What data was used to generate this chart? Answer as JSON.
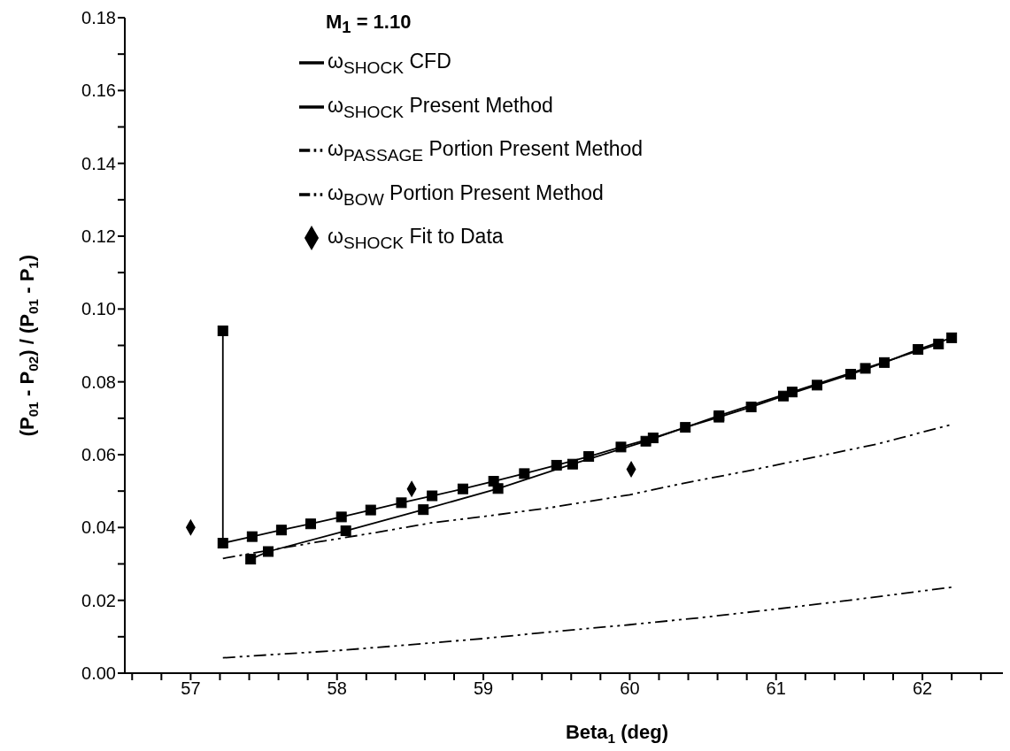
{
  "chart_data": {
    "type": "line",
    "title": "M$_{1}$ = 1.10",
    "xlabel": "Beta$_{1}$ (deg)",
    "ylabel": "(P$_{01}$ - P$_{02}$) / (P$_{01}$ - P$_{1}$)",
    "xlim": [
      56.55,
      62.55
    ],
    "xticks": [
      {
        "value": 56.6,
        "label": null
      },
      {
        "value": 56.8,
        "label": null
      },
      57,
      {
        "value": 57.2,
        "label": null
      },
      {
        "value": 57.4,
        "label": null
      },
      {
        "value": 57.6,
        "label": null
      },
      {
        "value": 57.8,
        "label": null
      },
      58,
      {
        "value": 58.2,
        "label": null
      },
      {
        "value": 58.4,
        "label": null
      },
      {
        "value": 58.6,
        "label": null
      },
      {
        "value": 58.8,
        "label": null
      },
      59,
      {
        "value": 59.2,
        "label": null
      },
      {
        "value": 59.4,
        "label": null
      },
      {
        "value": 59.6,
        "label": null
      },
      {
        "value": 59.8,
        "label": null
      },
      60,
      {
        "value": 60.2,
        "label": null
      },
      {
        "value": 60.4,
        "label": null
      },
      {
        "value": 60.6,
        "label": null
      },
      {
        "value": 60.8,
        "label": null
      },
      61,
      {
        "value": 61.2,
        "label": null
      },
      {
        "value": 61.4,
        "label": null
      },
      {
        "value": 61.6,
        "label": null
      },
      {
        "value": 61.8,
        "label": null
      },
      62,
      {
        "value": 62.2,
        "label": null
      },
      {
        "value": 62.4,
        "label": null
      }
    ],
    "ylim": [
      0,
      0.18
    ],
    "yticks": [
      {
        "value": 0,
        "label": "0.00"
      },
      {
        "value": 0.01,
        "label": null
      },
      {
        "value": 0.02,
        "label": "0.02"
      },
      {
        "value": 0.03,
        "label": null
      },
      {
        "value": 0.04,
        "label": "0.04"
      },
      {
        "value": 0.05,
        "label": null
      },
      {
        "value": 0.06,
        "label": "0.06"
      },
      {
        "value": 0.07,
        "label": null
      },
      {
        "value": 0.08,
        "label": "0.08"
      },
      {
        "value": 0.09,
        "label": null
      },
      {
        "value": 0.1,
        "label": "0.10"
      },
      {
        "value": 0.11,
        "label": null
      },
      {
        "value": 0.12,
        "label": "0.12"
      },
      {
        "value": 0.13,
        "label": null
      },
      {
        "value": 0.14,
        "label": "0.14"
      },
      {
        "value": 0.15,
        "label": null
      },
      {
        "value": 0.16,
        "label": "0.16"
      },
      {
        "value": 0.17,
        "label": null
      },
      {
        "value": 0.18,
        "label": "0.18"
      }
    ],
    "grid": false,
    "legend": "top",
    "series": [
      {
        "name": "ω$_{SHOCK}$ CFD",
        "color": "#000000",
        "marker": "square",
        "line_style": "solid",
        "x": [
          57.41,
          57.53,
          58.06,
          58.59,
          59.1,
          59.61,
          60.11,
          60.61,
          61.11,
          61.61,
          62.11
        ],
        "values": [
          0.0313,
          0.0334,
          0.0391,
          0.0449,
          0.0507,
          0.0574,
          0.0637,
          0.0707,
          0.0772,
          0.0837,
          0.0904
        ]
      },
      {
        "name": "ω$_{SHOCK}$ Present Method",
        "color": "#000000",
        "marker": "square",
        "line_style": "solid",
        "x": [
          57.22,
          57.22,
          57.42,
          57.62,
          57.82,
          58.03,
          58.23,
          58.44,
          58.65,
          58.86,
          59.07,
          59.28,
          59.5,
          59.72,
          59.94,
          60.16,
          60.38,
          60.61,
          60.83,
          61.05,
          61.28,
          61.51,
          61.74,
          61.97,
          62.2
        ],
        "values": [
          0.094,
          0.0357,
          0.0375,
          0.0393,
          0.041,
          0.0429,
          0.0448,
          0.0468,
          0.0487,
          0.0506,
          0.0527,
          0.0548,
          0.0571,
          0.0595,
          0.0621,
          0.0646,
          0.0675,
          0.0703,
          0.0731,
          0.0761,
          0.0791,
          0.0821,
          0.0853,
          0.0889,
          0.0921
        ]
      },
      {
        "name": "ω$_{PASSAGE}$ Portion Present Method",
        "color": "#000000",
        "marker": "none",
        "line_style": "dashed",
        "x": [
          57.22,
          57.5,
          57.85,
          58.25,
          58.65,
          59.0,
          59.45,
          60.0,
          60.35,
          60.8,
          61.2,
          61.7,
          62.2
        ],
        "values": [
          0.0315,
          0.0335,
          0.0359,
          0.0385,
          0.0413,
          0.043,
          0.0454,
          0.049,
          0.052,
          0.0555,
          0.0588,
          0.063,
          0.0683
        ]
      },
      {
        "name": "ω$_{BOW}$ Portion Present Method",
        "color": "#000000",
        "marker": "none",
        "line_style": "dashed",
        "x": [
          57.22,
          57.6,
          58.0,
          58.5,
          59.0,
          59.45,
          60.0,
          60.5,
          61.0,
          61.5,
          62.2
        ],
        "values": [
          0.0042,
          0.0052,
          0.0062,
          0.0078,
          0.0095,
          0.0113,
          0.0133,
          0.0153,
          0.0176,
          0.02,
          0.0236
        ]
      },
      {
        "name": "ω$_{SHOCK}$ Fit to Data",
        "type": "scatter",
        "color": "#000000",
        "marker": "diamond",
        "x": [
          57.0,
          58.51,
          60.01
        ],
        "values": [
          0.04,
          0.0506,
          0.056
        ]
      }
    ]
  }
}
